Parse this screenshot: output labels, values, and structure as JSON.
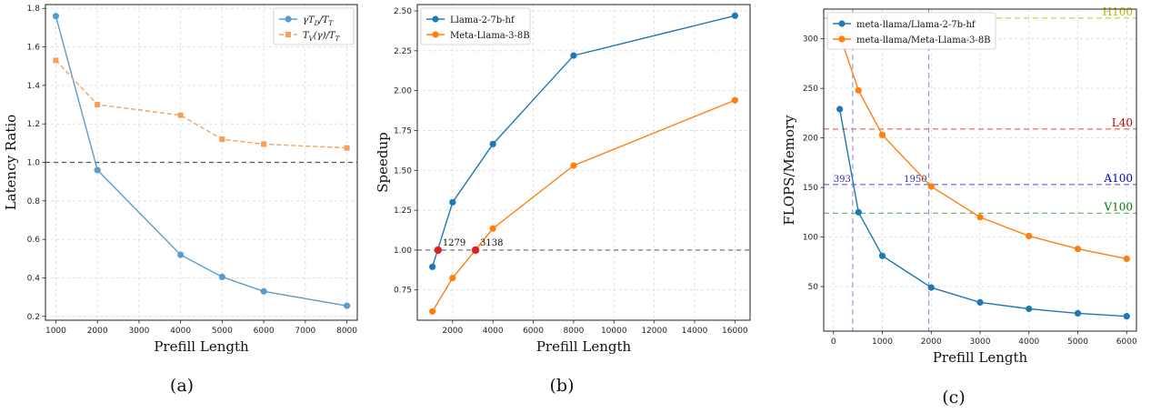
{
  "chart_data": [
    {
      "type": "line",
      "sublabel": "(a)",
      "xlabel": "Prefill Length",
      "ylabel": "Latency Ratio",
      "xlim": [
        750,
        8250
      ],
      "ylim": [
        0.18,
        1.82
      ],
      "xticks": [
        1000,
        2000,
        3000,
        4000,
        5000,
        6000,
        7000,
        8000
      ],
      "yticks": [
        0.2,
        0.4,
        0.6,
        0.8,
        1.0,
        1.2,
        1.4,
        1.6,
        1.8
      ],
      "ytick_labels": [
        "0.2",
        "0.4",
        "0.6",
        "0.8",
        "1.0",
        "1.2",
        "1.4",
        "1.6",
        "1.8"
      ],
      "grid": true,
      "legend": "top-right",
      "hlines": [
        {
          "y": 1.0,
          "color": "#555555",
          "dash": "5,4"
        }
      ],
      "series": [
        {
          "name": "γT_D/T_T",
          "label_parts": [
            "γT",
            "D",
            "/T",
            "T"
          ],
          "color": "#5b9ccd",
          "marker": "circle",
          "dash": "",
          "x": [
            1000,
            2000,
            4000,
            5000,
            6000,
            8000
          ],
          "y": [
            1.76,
            0.96,
            0.52,
            0.405,
            0.33,
            0.255
          ]
        },
        {
          "name": "T_V(γ)/T_T",
          "label_parts": [
            "T",
            "V",
            "(γ)/T",
            "T"
          ],
          "color": "#f5a054",
          "marker": "square",
          "dash": "5,3",
          "x": [
            1000,
            2000,
            4000,
            5000,
            6000,
            8000
          ],
          "y": [
            1.53,
            1.3,
            1.245,
            1.12,
            1.095,
            1.075
          ]
        }
      ]
    },
    {
      "type": "line",
      "sublabel": "(b)",
      "xlabel": "Prefill Length",
      "ylabel": "Speedup",
      "xlim": [
        250,
        16750
      ],
      "ylim": [
        0.56,
        2.54
      ],
      "xticks": [
        2000,
        4000,
        6000,
        8000,
        10000,
        12000,
        14000,
        16000
      ],
      "yticks": [
        0.75,
        1.0,
        1.25,
        1.5,
        1.75,
        2.0,
        2.25,
        2.5
      ],
      "ytick_labels": [
        "0.75",
        "1.00",
        "1.25",
        "1.50",
        "1.75",
        "2.00",
        "2.25",
        "2.50"
      ],
      "grid": true,
      "legend": "top-left",
      "hlines": [
        {
          "y": 1.0,
          "color": "#777777",
          "dash": "5,4"
        }
      ],
      "series": [
        {
          "name": "Llama-2-7b-hf",
          "color": "#1f77b4",
          "marker": "circle",
          "dash": "",
          "x": [
            1000,
            2000,
            4000,
            8000,
            16000
          ],
          "y": [
            0.895,
            1.3,
            1.665,
            2.22,
            2.47
          ]
        },
        {
          "name": "Meta-Llama-3-8B",
          "color": "#ff7f0e",
          "marker": "circle",
          "dash": "",
          "x": [
            1000,
            2000,
            4000,
            8000,
            16000
          ],
          "y": [
            0.615,
            0.825,
            1.135,
            1.53,
            1.94
          ]
        }
      ],
      "crossings": [
        {
          "x": 1279,
          "y": 1.0,
          "label": "1279"
        },
        {
          "x": 3138,
          "y": 1.0,
          "label": "3138"
        }
      ]
    },
    {
      "type": "line",
      "sublabel": "(c)",
      "xlabel": "Prefill Length",
      "ylabel": "FLOPS/Memory",
      "xlim": [
        -200,
        6200
      ],
      "ylim": [
        5,
        330
      ],
      "xticks": [
        0,
        1000,
        2000,
        3000,
        4000,
        5000,
        6000
      ],
      "yticks": [
        50,
        100,
        150,
        200,
        250,
        300
      ],
      "ytick_labels": [
        "50",
        "100",
        "150",
        "200",
        "250",
        "300"
      ],
      "grid": true,
      "legend": "top-left",
      "hlines": [
        {
          "y": 321,
          "color": "#d4d45a",
          "dash": "6,4",
          "label": "H100"
        },
        {
          "y": 209,
          "color": "#ee7a7a",
          "dash": "6,4",
          "label": "L40"
        },
        {
          "y": 153,
          "color": "#7a7aee",
          "dash": "6,4",
          "label": "A100"
        },
        {
          "y": 124,
          "color": "#6cbf6c",
          "dash": "6,4",
          "label": "V100"
        }
      ],
      "hline_label_colors": {
        "H100": "#b8b800",
        "L40": "#cc0000",
        "A100": "#0000cc",
        "V100": "#007700"
      },
      "vlines": [
        {
          "x": 393,
          "color": "#9a9aee",
          "dash": "6,4",
          "label": "393"
        },
        {
          "x": 1950,
          "color": "#9a9aee",
          "dash": "6,4",
          "label": "1950"
        }
      ],
      "series": [
        {
          "name": "meta-llama/Llama-2-7b-hf",
          "color": "#1f77b4",
          "marker": "circle",
          "dash": "",
          "x": [
            128,
            512,
            1000,
            2000,
            3000,
            4000,
            5000,
            6000
          ],
          "y": [
            229,
            125,
            81,
            49,
            34,
            27.5,
            23,
            20
          ]
        },
        {
          "name": "meta-llama/Meta-Llama-3-8B",
          "color": "#ff7f0e",
          "marker": "circle",
          "dash": "",
          "x": [
            128,
            512,
            1000,
            2000,
            3000,
            4000,
            5000,
            6000
          ],
          "y": [
            304,
            248,
            203,
            151,
            120,
            101,
            88,
            78
          ]
        }
      ]
    }
  ]
}
